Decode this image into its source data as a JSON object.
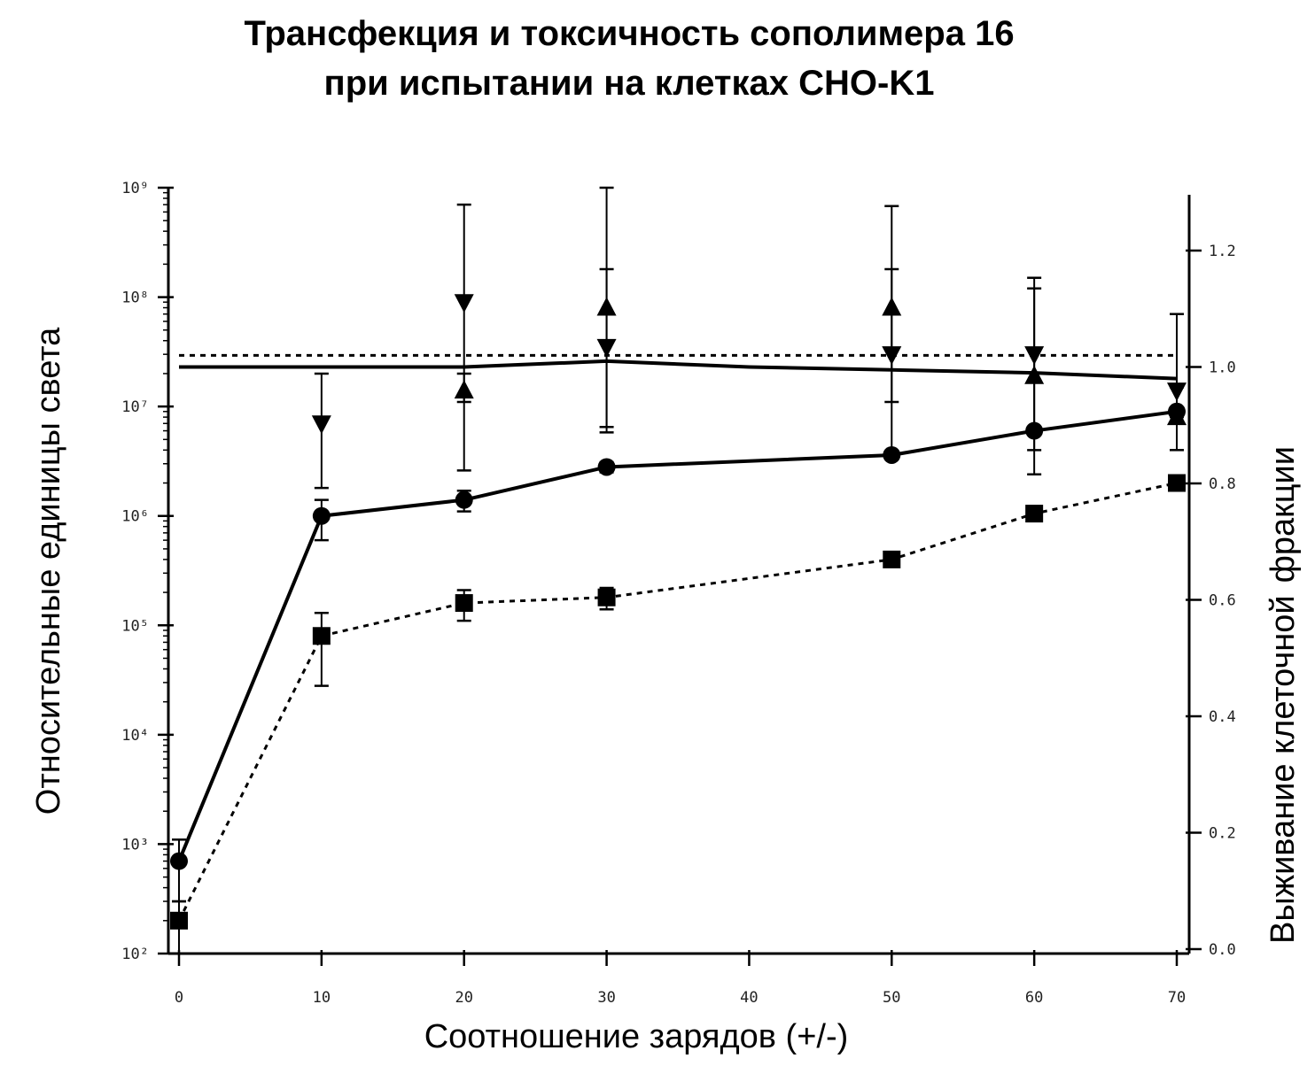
{
  "title": {
    "line1": "Трансфекция и токсичность сополимера 16",
    "line2": "при испытании на клетках CHO-K1"
  },
  "chart_data": {
    "type": "line",
    "title": "Трансфекция и токсичность сополимера 16 при испытании на клетках CHO-K1",
    "xlabel": "Соотношение зарядов (+/-)",
    "ylabel_left": "Относительные единицы света",
    "ylabel_right_a": "Выживание клеточной",
    "ylabel_right_b": "фракции",
    "xlim": [
      0,
      70
    ],
    "x_ticks": [
      0,
      10,
      20,
      30,
      40,
      50,
      60,
      70
    ],
    "x_tick_labels": [
      "0",
      "10",
      "20",
      "30",
      "40",
      "50",
      "60",
      "70"
    ],
    "ylim_left": [
      100,
      1000000000
    ],
    "y_left_scale": "log",
    "y_left_ticks": [
      100,
      1000,
      10000,
      100000,
      1000000,
      10000000,
      100000000,
      1000000000
    ],
    "y_left_tick_labels": [
      "10²",
      "10³",
      "10⁴",
      "10⁵",
      "10⁶",
      "10⁷",
      "10⁸",
      "10⁹"
    ],
    "ylim_right": [
      0.0,
      1.3
    ],
    "y_right_ticks": [
      0.0,
      0.2,
      0.4,
      0.6,
      0.8,
      1.0,
      1.2
    ],
    "y_right_tick_labels": [
      "0.0",
      "0.2",
      "0.4",
      "0.6",
      "0.8",
      "1.0",
      "1.2"
    ],
    "series": [
      {
        "axis": "left",
        "style": "solid",
        "marker": "circle",
        "x": [
          0,
          10,
          20,
          30,
          50,
          60,
          70
        ],
        "y": [
          700,
          1000000,
          1400000,
          2800000,
          3600000,
          6000000,
          9000000
        ],
        "err_low": [
          300,
          600000,
          1100000,
          2500000,
          3300000,
          5500000,
          8500000
        ],
        "err_high": [
          1100,
          1400000,
          1700000,
          3100000,
          3900000,
          6500000,
          9500000
        ]
      },
      {
        "axis": "left",
        "style": "dotted",
        "marker": "square",
        "x": [
          0,
          10,
          20,
          30,
          50,
          60,
          70
        ],
        "y": [
          200,
          80000,
          160000,
          180000,
          400000,
          1050000,
          2000000
        ],
        "err_low": [
          100,
          28000,
          110000,
          140000,
          380000,
          1000000,
          1900000
        ],
        "err_high": [
          300,
          130000,
          210000,
          220000,
          420000,
          1100000,
          2100000
        ]
      },
      {
        "axis": "left",
        "style": "none",
        "marker": "triangle-down",
        "x": [
          10,
          20,
          30,
          50,
          60,
          70
        ],
        "y": [
          7000000,
          90000000,
          35000000,
          30000000,
          30000000,
          14000000
        ],
        "err_low": [
          1800000,
          2600000,
          5800000,
          3500000,
          2400000,
          8000000
        ],
        "err_high": [
          20000000,
          700000000,
          180000000,
          180000000,
          120000000,
          70000000
        ]
      },
      {
        "axis": "left",
        "style": "none",
        "marker": "triangle-up",
        "x": [
          20,
          30,
          50,
          60,
          70
        ],
        "y": [
          14000000,
          80000000,
          80000000,
          19000000,
          8000000
        ],
        "err_low": [
          11000000,
          6500000,
          11000000,
          4000000,
          4000000
        ],
        "err_high": [
          20000000,
          1000000000,
          680000000,
          150000000,
          15000000
        ]
      },
      {
        "axis": "right",
        "style": "solid",
        "marker": "none",
        "x": [
          0,
          10,
          20,
          30,
          40,
          50,
          60,
          70
        ],
        "y": [
          1.0,
          1.0,
          1.0,
          1.01,
          1.0,
          0.995,
          0.99,
          0.98
        ]
      },
      {
        "axis": "right",
        "style": "dotted",
        "marker": "none",
        "x": [
          0,
          10,
          20,
          30,
          40,
          50,
          60,
          70
        ],
        "y": [
          1.02,
          1.02,
          1.02,
          1.02,
          1.02,
          1.02,
          1.02,
          1.02
        ]
      }
    ],
    "grid": false,
    "legend": "none"
  },
  "colors": {
    "ink": "#000000",
    "background": "#ffffff"
  }
}
